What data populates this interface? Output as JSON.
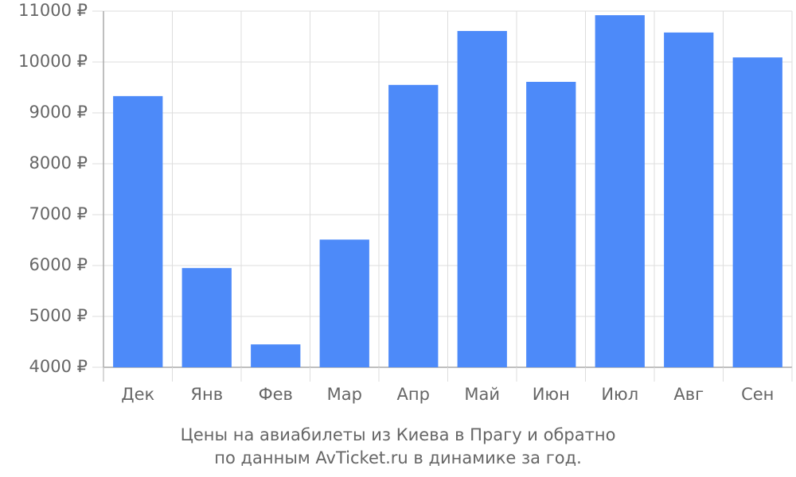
{
  "chart_data": {
    "type": "bar",
    "title": [
      "Цены на авиабилеты из Киева в Прагу и обратно",
      "по данным AvTicket.ru в динамике за год."
    ],
    "categories": [
      "Дек",
      "Янв",
      "Фев",
      "Мар",
      "Апр",
      "Май",
      "Июн",
      "Июл",
      "Авг",
      "Сен"
    ],
    "values": [
      9330,
      5950,
      4450,
      6510,
      9550,
      10610,
      9610,
      10920,
      10580,
      10090
    ],
    "color": "#4d8af9",
    "ylim": [
      4000,
      11000
    ],
    "yticks": [
      {
        "value": 4000,
        "label": "4000 ₽"
      },
      {
        "value": 5000,
        "label": "5000 ₽"
      },
      {
        "value": 6000,
        "label": "6000 ₽"
      },
      {
        "value": 7000,
        "label": "7000 ₽"
      },
      {
        "value": 8000,
        "label": "8000 ₽"
      },
      {
        "value": 9000,
        "label": "9000 ₽"
      },
      {
        "value": 10000,
        "label": "10000 ₽"
      },
      {
        "value": 11000,
        "label": "11000 ₽"
      }
    ],
    "grid": true
  }
}
